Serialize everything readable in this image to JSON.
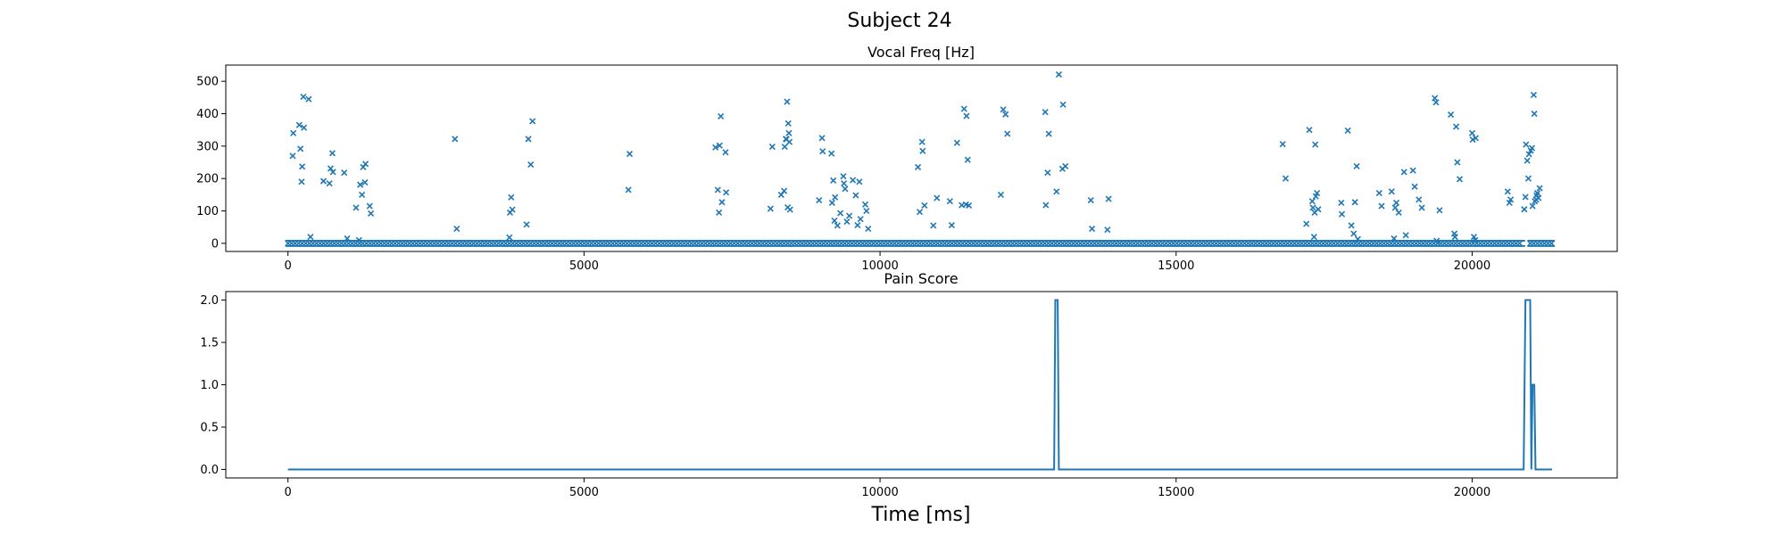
{
  "figure": {
    "title": "Subject 24",
    "xlabel": "Time [ms]"
  },
  "chart_data": [
    {
      "type": "scatter",
      "title": "Vocal Freq [Hz]",
      "xlabel": "",
      "ylabel": "",
      "xlim": [
        -1050,
        22450
      ],
      "ylim": [
        -25,
        550
      ],
      "xticks": [
        0,
        5000,
        10000,
        15000,
        20000
      ],
      "yticks": [
        0,
        100,
        200,
        300,
        400,
        500
      ],
      "marker": "x",
      "color": "#1f77b4",
      "grid": false,
      "baseline": {
        "value": 0,
        "x_ranges": [
          [
            0,
            20850
          ],
          [
            20980,
            21350
          ]
        ]
      },
      "points": [
        [
          80,
          270
        ],
        [
          90,
          340
        ],
        [
          190,
          365
        ],
        [
          210,
          292
        ],
        [
          230,
          190
        ],
        [
          240,
          237
        ],
        [
          260,
          452
        ],
        [
          270,
          357
        ],
        [
          350,
          445
        ],
        [
          380,
          20
        ],
        [
          600,
          192
        ],
        [
          700,
          185
        ],
        [
          720,
          231
        ],
        [
          750,
          278
        ],
        [
          760,
          220
        ],
        [
          950,
          218
        ],
        [
          1000,
          15
        ],
        [
          1150,
          110
        ],
        [
          1200,
          10
        ],
        [
          1220,
          181
        ],
        [
          1250,
          150
        ],
        [
          1270,
          235
        ],
        [
          1300,
          188
        ],
        [
          1310,
          245
        ],
        [
          1380,
          115
        ],
        [
          1400,
          92
        ],
        [
          2820,
          322
        ],
        [
          2850,
          45
        ],
        [
          3740,
          18
        ],
        [
          3750,
          95
        ],
        [
          3770,
          142
        ],
        [
          3790,
          104
        ],
        [
          4030,
          58
        ],
        [
          4060,
          322
        ],
        [
          4100,
          243
        ],
        [
          4130,
          377
        ],
        [
          5750,
          165
        ],
        [
          5770,
          276
        ],
        [
          7220,
          296
        ],
        [
          7260,
          165
        ],
        [
          7280,
          95
        ],
        [
          7290,
          302
        ],
        [
          7310,
          392
        ],
        [
          7330,
          127
        ],
        [
          7390,
          281
        ],
        [
          7400,
          157
        ],
        [
          8150,
          107
        ],
        [
          8180,
          298
        ],
        [
          8330,
          150
        ],
        [
          8380,
          162
        ],
        [
          8390,
          298
        ],
        [
          8410,
          322
        ],
        [
          8420,
          321
        ],
        [
          8430,
          437
        ],
        [
          8440,
          111
        ],
        [
          8450,
          370
        ],
        [
          8460,
          340
        ],
        [
          8470,
          313
        ],
        [
          8480,
          104
        ],
        [
          8970,
          133
        ],
        [
          9020,
          325
        ],
        [
          9030,
          284
        ],
        [
          9180,
          277
        ],
        [
          9190,
          125
        ],
        [
          9210,
          194
        ],
        [
          9230,
          70
        ],
        [
          9240,
          142
        ],
        [
          9280,
          55
        ],
        [
          9330,
          93
        ],
        [
          9380,
          207
        ],
        [
          9390,
          185
        ],
        [
          9410,
          168
        ],
        [
          9440,
          67
        ],
        [
          9480,
          85
        ],
        [
          9540,
          195
        ],
        [
          9590,
          148
        ],
        [
          9620,
          56
        ],
        [
          9650,
          190
        ],
        [
          9670,
          75
        ],
        [
          9750,
          120
        ],
        [
          9770,
          100
        ],
        [
          9800,
          45
        ],
        [
          10640,
          235
        ],
        [
          10670,
          97
        ],
        [
          10710,
          313
        ],
        [
          10720,
          285
        ],
        [
          10750,
          117
        ],
        [
          10900,
          55
        ],
        [
          10960,
          140
        ],
        [
          11180,
          130
        ],
        [
          11210,
          56
        ],
        [
          11300,
          310
        ],
        [
          11380,
          118
        ],
        [
          11420,
          415
        ],
        [
          11450,
          120
        ],
        [
          11460,
          393
        ],
        [
          11480,
          258
        ],
        [
          11500,
          117
        ],
        [
          12040,
          150
        ],
        [
          12080,
          413
        ],
        [
          12120,
          398
        ],
        [
          12150,
          338
        ],
        [
          12790,
          405
        ],
        [
          12800,
          118
        ],
        [
          12830,
          218
        ],
        [
          12850,
          338
        ],
        [
          12980,
          160
        ],
        [
          13020,
          521
        ],
        [
          13080,
          230
        ],
        [
          13090,
          428
        ],
        [
          13130,
          238
        ],
        [
          13560,
          133
        ],
        [
          13580,
          45
        ],
        [
          13840,
          42
        ],
        [
          13860,
          137
        ],
        [
          16800,
          306
        ],
        [
          16850,
          200
        ],
        [
          17200,
          60
        ],
        [
          17250,
          350
        ],
        [
          17300,
          130
        ],
        [
          17310,
          110
        ],
        [
          17330,
          20
        ],
        [
          17340,
          95
        ],
        [
          17350,
          305
        ],
        [
          17360,
          145
        ],
        [
          17380,
          155
        ],
        [
          17400,
          105
        ],
        [
          17790,
          125
        ],
        [
          17800,
          90
        ],
        [
          17900,
          348
        ],
        [
          17960,
          55
        ],
        [
          18000,
          30
        ],
        [
          18020,
          127
        ],
        [
          18050,
          238
        ],
        [
          18070,
          13
        ],
        [
          18430,
          155
        ],
        [
          18470,
          115
        ],
        [
          18640,
          160
        ],
        [
          18680,
          15
        ],
        [
          18700,
          110
        ],
        [
          18720,
          125
        ],
        [
          18760,
          95
        ],
        [
          18850,
          220
        ],
        [
          18880,
          25
        ],
        [
          19000,
          225
        ],
        [
          19030,
          175
        ],
        [
          19100,
          135
        ],
        [
          19150,
          110
        ],
        [
          19370,
          448
        ],
        [
          19390,
          435
        ],
        [
          19450,
          102
        ],
        [
          19400,
          8
        ],
        [
          19640,
          397
        ],
        [
          19700,
          30
        ],
        [
          19710,
          20
        ],
        [
          19730,
          360
        ],
        [
          19750,
          250
        ],
        [
          19790,
          198
        ],
        [
          20000,
          340
        ],
        [
          20010,
          320
        ],
        [
          20030,
          20
        ],
        [
          20050,
          10
        ],
        [
          20060,
          325
        ],
        [
          20600,
          160
        ],
        [
          20630,
          125
        ],
        [
          20650,
          135
        ],
        [
          20880,
          105
        ],
        [
          20900,
          143
        ],
        [
          20910,
          305
        ],
        [
          20930,
          255
        ],
        [
          20950,
          200
        ],
        [
          20960,
          275
        ],
        [
          20990,
          286
        ],
        [
          21010,
          294
        ],
        [
          21020,
          115
        ],
        [
          21040,
          458
        ],
        [
          21050,
          400
        ],
        [
          21060,
          130
        ],
        [
          21080,
          135
        ],
        [
          21090,
          148
        ],
        [
          21100,
          155
        ],
        [
          21120,
          140
        ],
        [
          21140,
          170
        ]
      ]
    },
    {
      "type": "line",
      "title": "Pain Score",
      "xlabel": "",
      "ylabel": "",
      "xlim": [
        -1050,
        22450
      ],
      "ylim": [
        -0.1,
        2.1
      ],
      "xticks": [
        0,
        5000,
        10000,
        15000,
        20000
      ],
      "yticks": [
        0.0,
        0.5,
        1.0,
        1.5,
        2.0
      ],
      "ytick_labels": [
        "0.0",
        "0.5",
        "1.0",
        "1.5",
        "2.0"
      ],
      "color": "#1f77b4",
      "grid": false,
      "x": [
        0,
        12940,
        12960,
        13000,
        13020,
        20870,
        20900,
        20980,
        21000,
        21020,
        21050,
        21070,
        21350
      ],
      "y": [
        0,
        0,
        2,
        2,
        0,
        0,
        2,
        2,
        0,
        1,
        1,
        0,
        0
      ]
    }
  ]
}
